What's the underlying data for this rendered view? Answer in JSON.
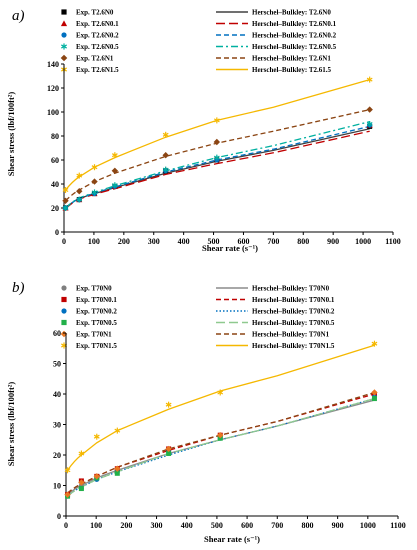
{
  "chart_data": [
    {
      "type": "scatter",
      "panel_label": "a)",
      "xlabel": "Shear rate (s⁻¹)",
      "ylabel": "Shear stress (lbf/100ft²)",
      "xlim": [
        0,
        1100
      ],
      "ylim": [
        0,
        140
      ],
      "xticks": [
        0,
        100,
        200,
        300,
        400,
        500,
        600,
        700,
        800,
        900,
        1000,
        1100
      ],
      "yticks": [
        0,
        20,
        40,
        60,
        80,
        100,
        120,
        140
      ],
      "grid": false,
      "legend": "top",
      "shear_rates": [
        5.1,
        51,
        102,
        170,
        340,
        511,
        1022
      ],
      "series": [
        {
          "name": "Exp. T2.6N0",
          "marker": "square",
          "color": "#000000",
          "values": [
            20,
            27,
            32,
            38,
            51,
            60,
            88
          ]
        },
        {
          "name": "Exp. T2.6N0.1",
          "marker": "triangle",
          "color": "#c00000",
          "values": [
            20,
            27,
            32,
            38,
            52,
            61,
            89
          ]
        },
        {
          "name": "Exp. T2.6N0.2",
          "marker": "circle",
          "color": "#0070c0",
          "values": [
            20,
            27,
            32,
            38,
            51,
            60,
            89
          ]
        },
        {
          "name": "Exp. T2.6N0.5",
          "marker": "asterisk",
          "color": "#00b0a0",
          "values": [
            20,
            27,
            33,
            39,
            52,
            62,
            90
          ]
        },
        {
          "name": "Exp. T2.6N1",
          "marker": "diamond",
          "color": "#8b4513",
          "values": [
            26,
            34,
            42,
            51,
            64,
            75,
            102
          ]
        },
        {
          "name": "Exp. T2.6N1.5",
          "marker": "asterisk",
          "color": "#f5b800",
          "values": [
            35,
            47,
            54,
            64,
            81,
            93,
            127
          ]
        }
      ],
      "fits": [
        {
          "name": "Herschel–Bulkley: T2.6N0",
          "dash": "solid",
          "color": "#404040",
          "points": [
            [
              5.1,
              20
            ],
            [
              51,
              28
            ],
            [
              102,
              32
            ],
            [
              170,
              37
            ],
            [
              340,
              49
            ],
            [
              511,
              59
            ],
            [
              700,
              68
            ],
            [
              1022,
              86
            ]
          ]
        },
        {
          "name": "Herschel–Bulkley: T2.6N0.1",
          "dash": "longdash",
          "color": "#c00000",
          "points": [
            [
              5.1,
              19.5
            ],
            [
              51,
              27.5
            ],
            [
              102,
              31.5
            ],
            [
              170,
              36
            ],
            [
              340,
              48
            ],
            [
              511,
              57
            ],
            [
              700,
              66
            ],
            [
              1022,
              84
            ]
          ]
        },
        {
          "name": "Herschel–Bulkley: T2.6N0.2",
          "dash": "dash",
          "color": "#0070c0",
          "points": [
            [
              5.1,
              20
            ],
            [
              51,
              28
            ],
            [
              102,
              32.5
            ],
            [
              170,
              37.5
            ],
            [
              340,
              50
            ],
            [
              511,
              60
            ],
            [
              700,
              69
            ],
            [
              1022,
              88
            ]
          ]
        },
        {
          "name": "Herschel–Bulkley: T2.6N0.5",
          "dash": "dashdot",
          "color": "#00b0a0",
          "points": [
            [
              5.1,
              20
            ],
            [
              51,
              28.5
            ],
            [
              102,
              33
            ],
            [
              170,
              38.5
            ],
            [
              340,
              51
            ],
            [
              511,
              62
            ],
            [
              700,
              72
            ],
            [
              1022,
              92
            ]
          ]
        },
        {
          "name": "Herschel–Bulkley: T2.6N1",
          "dash": "dash",
          "color": "#8b4513",
          "points": [
            [
              5.1,
              26
            ],
            [
              51,
              35
            ],
            [
              102,
              42
            ],
            [
              170,
              49
            ],
            [
              340,
              63
            ],
            [
              511,
              74
            ],
            [
              700,
              84
            ],
            [
              1022,
              102
            ]
          ]
        },
        {
          "name": "Herschel–Bulkley: T2.61.5",
          "dash": "solid",
          "color": "#f5b800",
          "points": [
            [
              5.1,
              35
            ],
            [
              51,
              46
            ],
            [
              102,
              54
            ],
            [
              170,
              62
            ],
            [
              340,
              79
            ],
            [
              511,
              93
            ],
            [
              700,
              104
            ],
            [
              1022,
              127
            ]
          ]
        }
      ]
    },
    {
      "type": "scatter",
      "panel_label": "b)",
      "xlabel": "Shear rate (s⁻¹)",
      "ylabel": "Shear stress (lbf/100ft²)",
      "xlim": [
        0,
        1100
      ],
      "ylim": [
        0,
        60
      ],
      "xticks": [
        0,
        100,
        200,
        300,
        400,
        500,
        600,
        700,
        800,
        900,
        1000,
        1100
      ],
      "yticks": [
        0,
        10,
        20,
        30,
        40,
        50,
        60
      ],
      "grid": false,
      "legend": "top",
      "shear_rates": [
        5.1,
        51,
        102,
        170,
        340,
        511,
        1022
      ],
      "series": [
        {
          "name": "Exp. T70N0",
          "marker": "circle",
          "color": "#7f7f7f",
          "values": [
            7,
            10,
            12,
            15,
            22,
            26,
            39
          ]
        },
        {
          "name": "Exp. T70N0.1",
          "marker": "square",
          "color": "#c00000",
          "values": [
            7,
            11.5,
            13,
            15.5,
            22,
            26.5,
            40
          ]
        },
        {
          "name": "Exp. T70N0.2",
          "marker": "circle",
          "color": "#0070c0",
          "values": [
            6.5,
            9,
            12,
            14.5,
            21,
            25.5,
            39
          ]
        },
        {
          "name": "Exp. T70N0.5",
          "marker": "square",
          "color": "#22b04a",
          "values": [
            6.5,
            9,
            12.5,
            14,
            20.5,
            25.5,
            38.5
          ]
        },
        {
          "name": "Exp. T70N1",
          "marker": "diamond",
          "color": "#e87722",
          "values": [
            7,
            11,
            13,
            15.5,
            22,
            26.5,
            40.5
          ]
        },
        {
          "name": "Exp. T70N1.5",
          "marker": "asterisk",
          "color": "#f5b800",
          "values": [
            15,
            20.5,
            26,
            28,
            36.5,
            40.5,
            56.5
          ]
        }
      ],
      "fits": [
        {
          "name": "Herschel–Bulkley: T70N0",
          "dash": "solid",
          "color": "#8c8c8c",
          "points": [
            [
              5.1,
              7
            ],
            [
              51,
              10
            ],
            [
              102,
              12.5
            ],
            [
              170,
              15
            ],
            [
              340,
              20.5
            ],
            [
              511,
              25
            ],
            [
              700,
              29.5
            ],
            [
              1022,
              38
            ]
          ]
        },
        {
          "name": "Herschel–Bulkley: T70N0.1",
          "dash": "dash",
          "color": "#c00000",
          "points": [
            [
              5.1,
              7.5
            ],
            [
              51,
              10.5
            ],
            [
              102,
              13
            ],
            [
              170,
              16
            ],
            [
              340,
              21.5
            ],
            [
              511,
              26.5
            ],
            [
              700,
              31
            ],
            [
              1022,
              40
            ]
          ]
        },
        {
          "name": "Herschel–Bulkley: T70N0.2",
          "dash": "dot",
          "color": "#0070c0",
          "points": [
            [
              5.1,
              6.5
            ],
            [
              51,
              9.5
            ],
            [
              102,
              12
            ],
            [
              170,
              14.5
            ],
            [
              340,
              20
            ],
            [
              511,
              25
            ],
            [
              700,
              29.5
            ],
            [
              1022,
              38.5
            ]
          ]
        },
        {
          "name": "Herschel–Bulkley: T70N0.5",
          "dash": "longdash",
          "color": "#8fc98f",
          "points": [
            [
              5.1,
              6.5
            ],
            [
              51,
              9.5
            ],
            [
              102,
              12
            ],
            [
              170,
              14.5
            ],
            [
              340,
              20.5
            ],
            [
              511,
              25
            ],
            [
              700,
              29.5
            ],
            [
              1022,
              38.5
            ]
          ]
        },
        {
          "name": "Herschel–Bulkley: T70N1",
          "dash": "dash",
          "color": "#8b4513",
          "points": [
            [
              5.1,
              7.5
            ],
            [
              51,
              10.5
            ],
            [
              102,
              13
            ],
            [
              170,
              16
            ],
            [
              340,
              22
            ],
            [
              511,
              26.5
            ],
            [
              700,
              31
            ],
            [
              1022,
              40.5
            ]
          ]
        },
        {
          "name": "Herschel–Bulkley: T70N1.5",
          "dash": "solid",
          "color": "#f5b800",
          "points": [
            [
              5.1,
              15
            ],
            [
              51,
              20
            ],
            [
              102,
              24
            ],
            [
              170,
              28
            ],
            [
              340,
              35
            ],
            [
              511,
              41
            ],
            [
              700,
              46
            ],
            [
              1022,
              56
            ]
          ]
        }
      ]
    }
  ]
}
